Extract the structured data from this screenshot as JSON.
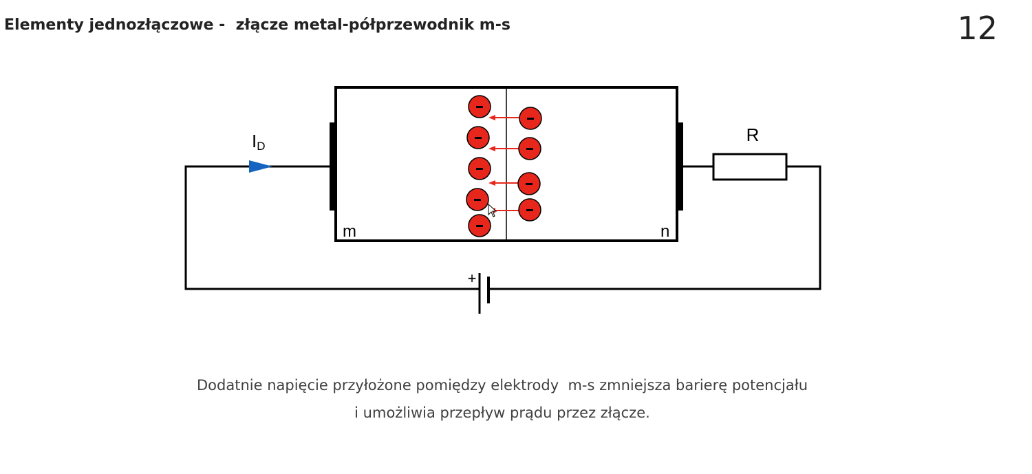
{
  "slide": {
    "title": "Elementy jednozłączowe -  złącze metal-półprzewodnik m-s",
    "number": "12"
  },
  "diagram": {
    "current_label": "I",
    "current_subscript": "D",
    "resistor_label": "R",
    "metal_label": "m",
    "semiconductor_label": "n",
    "battery_plus": "+",
    "electron_symbol": "-",
    "colors": {
      "wire": "#000000",
      "electron": "#e8271c",
      "arrow": "#e8271c",
      "current_arrow": "#1565c0"
    }
  },
  "caption": {
    "line1": "Dodatnie napięcie przyłożone pomiędzy elektrody  m-s zmniejsza barierę potencjału",
    "line2": "i umożliwia przepływ prądu przez złącze."
  }
}
